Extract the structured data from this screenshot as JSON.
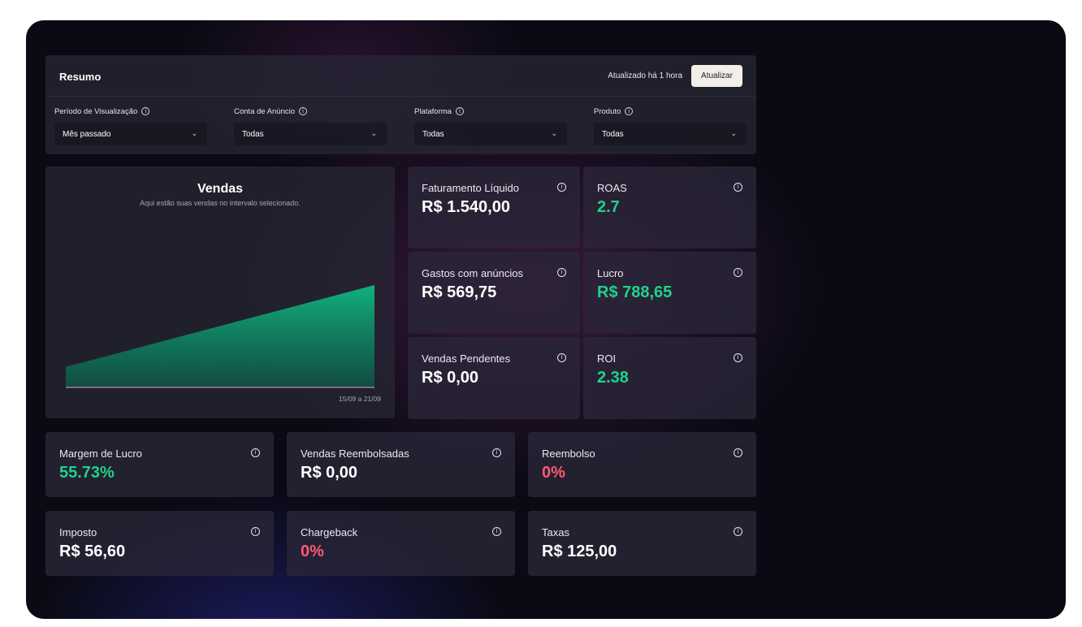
{
  "header": {
    "title": "Resumo",
    "updated": "Atualizado há 1 hora",
    "refresh_label": "Atualizar"
  },
  "filters": [
    {
      "label": "Período de Visualização",
      "value": "Mês passado"
    },
    {
      "label": "Conta de Anúncio",
      "value": "Todas"
    },
    {
      "label": "Plataforma",
      "value": "Todas"
    },
    {
      "label": "Produto",
      "value": "Todas"
    }
  ],
  "sales": {
    "title": "Vendas",
    "subtitle": "Aqui estão suas vendas no intervalo selecionado.",
    "range": "15/09 a 21/09"
  },
  "chart_data": {
    "type": "area",
    "title": "Vendas",
    "x": [
      "15/09",
      "21/09"
    ],
    "series": [
      {
        "values": [
          0.2,
          1.0
        ]
      }
    ],
    "ylim": [
      0,
      1
    ],
    "grid": false,
    "color": "#10b981"
  },
  "metrics": {
    "faturamento": {
      "label": "Faturamento Líquido",
      "value": "R$ 1.540,00",
      "color": "white"
    },
    "roas": {
      "label": "ROAS",
      "value": "2.7",
      "color": "green"
    },
    "gastos": {
      "label": "Gastos com anúncios",
      "value": "R$ 569,75",
      "color": "white"
    },
    "lucro": {
      "label": "Lucro",
      "value": "R$ 788,65",
      "color": "green"
    },
    "pendentes": {
      "label": "Vendas Pendentes",
      "value": "R$ 0,00",
      "color": "white"
    },
    "roi": {
      "label": "ROI",
      "value": "2.38",
      "color": "green"
    },
    "margem": {
      "label": "Margem de Lucro",
      "value": "55.73%",
      "color": "green"
    },
    "reembolsadas": {
      "label": "Vendas Reembolsadas",
      "value": "R$ 0,00",
      "color": "white"
    },
    "reembolso": {
      "label": "Reembolso",
      "value": "0%",
      "color": "red"
    },
    "imposto": {
      "label": "Imposto",
      "value": "R$ 56,60",
      "color": "white"
    },
    "chargeback": {
      "label": "Chargeback",
      "value": "0%",
      "color": "red"
    },
    "taxas": {
      "label": "Taxas",
      "value": "R$ 125,00",
      "color": "white"
    }
  },
  "icons": {
    "info": "info-icon",
    "chevron": "chevron-down-icon"
  }
}
